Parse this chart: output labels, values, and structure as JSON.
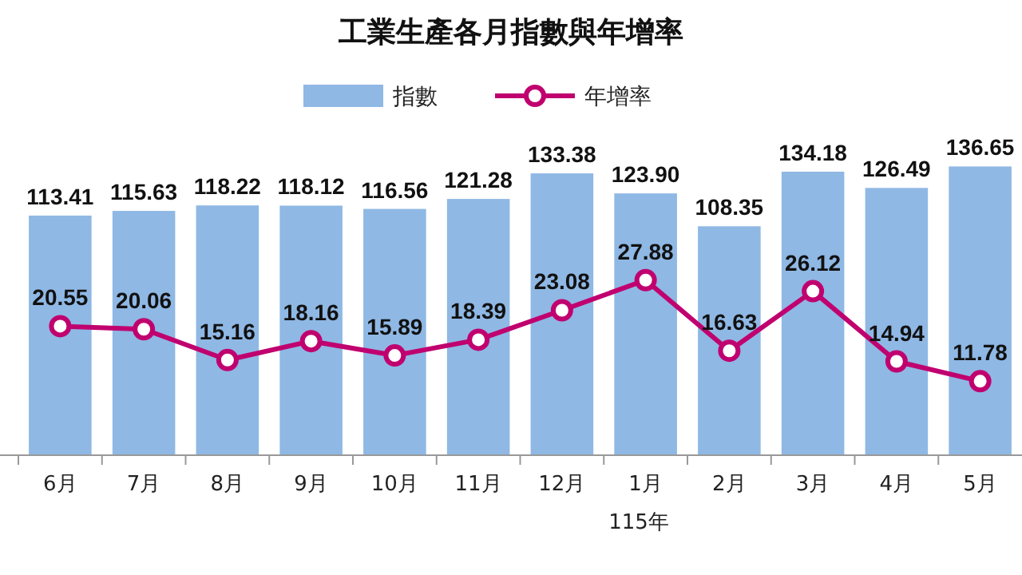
{
  "chart_data": {
    "type": "bar",
    "title": "工業生產各月指數與年增率",
    "categories": [
      "6月",
      "7月",
      "8月",
      "9月",
      "10月",
      "11月",
      "12月",
      "1月",
      "2月",
      "3月",
      "4月",
      "5月"
    ],
    "series": [
      {
        "name": "指數",
        "color": "#8fb8e4",
        "values": [
          113.41,
          115.63,
          118.22,
          118.12,
          116.56,
          121.28,
          133.38,
          123.9,
          108.35,
          134.18,
          126.49,
          136.65
        ],
        "value_labels": [
          "113.41",
          "115.63",
          "118.22",
          "118.12",
          "116.56",
          "121.28",
          "133.38",
          "123.90",
          "108.35",
          "134.18",
          "126.49",
          "136.65"
        ]
      },
      {
        "name": "年增率",
        "type": "line",
        "axis": "y2",
        "color": "#c0006f",
        "marker": "circle",
        "values": [
          20.55,
          20.06,
          15.16,
          18.16,
          15.89,
          18.39,
          23.08,
          27.88,
          16.63,
          26.12,
          14.94,
          11.78
        ],
        "value_labels": [
          "20.55",
          "20.06",
          "15.16",
          "18.16",
          "15.89",
          "18.39",
          "23.08",
          "27.88",
          "16.63",
          "26.12",
          "14.94",
          "11.78"
        ]
      }
    ],
    "tick_labels": "x",
    "legend": "top",
    "annotations": [
      "115年"
    ]
  }
}
